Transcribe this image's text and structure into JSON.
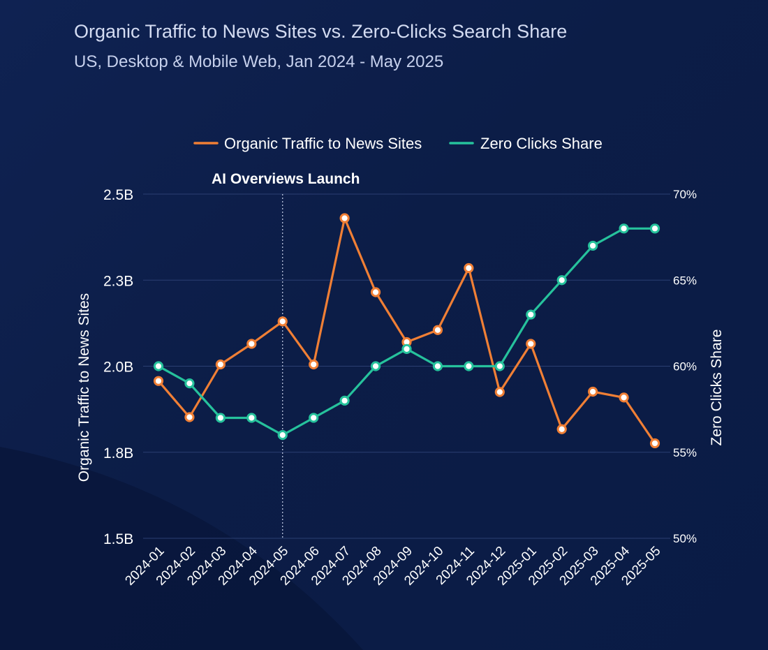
{
  "header": {
    "title": "Organic Traffic to News Sites vs. Zero-Clicks Search Share",
    "subtitle": "US, Desktop & Mobile Web, Jan 2024 - May 2025"
  },
  "colors": {
    "background": "#0c1d47",
    "organic": "#f07f35",
    "zero": "#26c29c",
    "gridline": "#2b3f72",
    "marker_fill": "#ffffff"
  },
  "chart_data": {
    "type": "line",
    "legend": {
      "placement": "top-center"
    },
    "grid": true,
    "annotations": [
      {
        "label": "AI Overviews Launch",
        "x": "2024-05",
        "style": "dotted-vertical-line"
      }
    ],
    "categories": [
      "2024-01",
      "2024-02",
      "2024-03",
      "2024-04",
      "2024-05",
      "2024-06",
      "2024-07",
      "2024-08",
      "2024-09",
      "2024-10",
      "2024-11",
      "2024-12",
      "2025-01",
      "2025-02",
      "2025-03",
      "2025-04",
      "2025-05"
    ],
    "y_left": {
      "label": "Organic Traffic to News Sites",
      "range_billions": [
        1.5,
        2.5
      ],
      "ticks_billions": [
        1.5,
        1.75,
        2.0,
        2.25,
        2.5
      ],
      "tick_labels": [
        "1.5B",
        "1.8B",
        "2.0B",
        "2.3B",
        "2.5B"
      ]
    },
    "y_right": {
      "label": "Zero Clicks Share",
      "range_percent": [
        50,
        70
      ],
      "ticks_percent": [
        50,
        55,
        60,
        65,
        70
      ],
      "tick_labels": [
        "50%",
        "55%",
        "60%",
        "65%",
        "70%"
      ]
    },
    "series": [
      {
        "name": "Organic Traffic to News Sites",
        "axis": "left",
        "unit": "billions",
        "color": "#f07f35",
        "values": [
          1.957,
          1.852,
          2.005,
          2.065,
          2.13,
          2.005,
          2.43,
          2.215,
          2.07,
          2.105,
          2.285,
          1.925,
          2.065,
          1.817,
          1.926,
          1.909,
          1.776
        ]
      },
      {
        "name": "Zero Clicks Share",
        "axis": "right",
        "unit": "percent",
        "color": "#26c29c",
        "values": [
          60,
          59,
          57,
          57,
          56,
          57,
          58,
          60,
          61,
          60,
          60,
          60,
          63,
          65,
          67,
          68,
          68
        ]
      }
    ]
  }
}
